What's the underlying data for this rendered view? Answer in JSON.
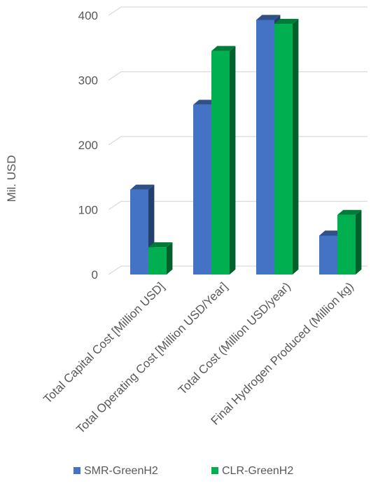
{
  "chart_data": {
    "type": "bar",
    "style": "3d-clustered-column",
    "title": "",
    "xlabel": "",
    "ylabel": "Mil. USD",
    "ylim": [
      0,
      400
    ],
    "yticks": [
      "0",
      "100",
      "200",
      "300",
      "400"
    ],
    "grid": true,
    "legend_position": "bottom",
    "categories": [
      "Total Capital Cost [Million USD]",
      "Total Operating Cost [Million USD/Year]",
      "Total Cost (Million USD/year)",
      "Final Hydrogen Produced (Million kg)"
    ],
    "series": [
      {
        "name": "SMR-GreenH2",
        "color": "#4472C4",
        "values": [
          131,
          262,
          393,
          60
        ]
      },
      {
        "name": "CLR-GreenH2",
        "color": "#00B050",
        "values": [
          42,
          345,
          387,
          92
        ]
      }
    ]
  }
}
